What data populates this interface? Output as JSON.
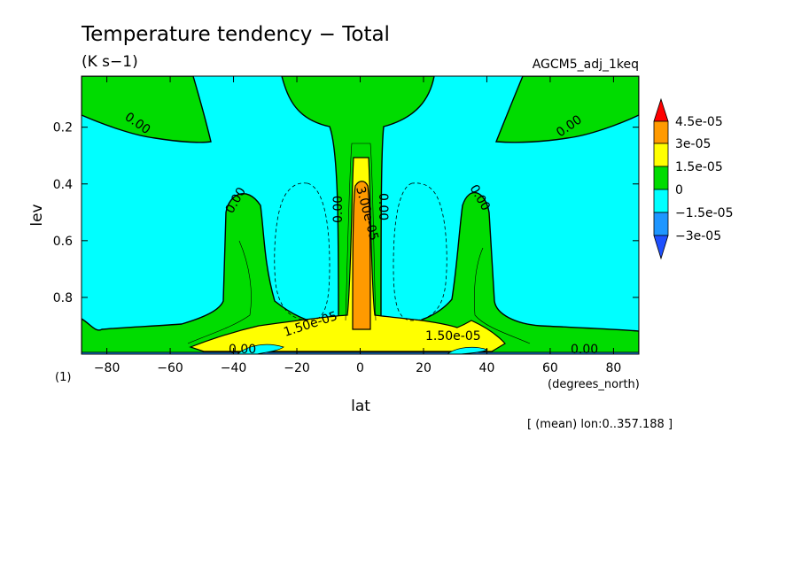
{
  "header": {
    "title": "Temperature tendency − Total",
    "units": "(K s−1)",
    "experiment": "AGCM5_adj_1keq",
    "footnote": "[ (mean) lon:0..357.188 ]",
    "panel_index": "(1)"
  },
  "chart_data": {
    "type": "heatmap",
    "xlabel": "lat",
    "xunits": "(degrees_north)",
    "ylabel": "lev",
    "xlim": [
      -88,
      88
    ],
    "ylim": [
      1.0,
      0.02
    ],
    "x_ticks": [
      -80,
      -60,
      -40,
      -20,
      0,
      20,
      40,
      60,
      80
    ],
    "x_tick_labels": [
      "−80",
      "−60",
      "−40",
      "−20",
      "0",
      "20",
      "40",
      "60",
      "80"
    ],
    "y_ticks": [
      0.2,
      0.4,
      0.6,
      0.8
    ],
    "y_tick_labels": [
      "0.2",
      "0.4",
      "0.6",
      "0.8"
    ],
    "colorbar": {
      "labels": [
        "4.5e-05",
        "3e-05",
        "1.5e-05",
        "0",
        "−1.5e-05",
        "−3e-05"
      ],
      "colors": [
        "#ff0000",
        "#ff9a00",
        "#ffff00",
        "#00dc00",
        "#00ffff",
        "#1e96ff",
        "#1e50ff"
      ]
    },
    "contour_labels": [
      {
        "text": "0.00",
        "lat": -71,
        "lev": 0.21
      },
      {
        "text": "0.00",
        "lat": 67,
        "lev": 0.21
      },
      {
        "text": "0.00",
        "lat": -38,
        "lev": 0.47
      },
      {
        "text": "0.00",
        "lat": 37,
        "lev": 0.47
      },
      {
        "text": "0.00",
        "lat": -7,
        "lev": 0.49
      },
      {
        "text": "0.00",
        "lat": 7,
        "lev": 0.49
      },
      {
        "text": "3.00e-05",
        "lat": 1,
        "lev": 0.55
      },
      {
        "text": "1.50e-05",
        "lat": -14,
        "lev": 0.93
      },
      {
        "text": "1.50e-05",
        "lat": 30,
        "lev": 0.96
      },
      {
        "text": "0.00",
        "lat": 70,
        "lev": 0.99
      },
      {
        "text": "0.00",
        "lat": -33,
        "lev": 0.99
      }
    ]
  }
}
